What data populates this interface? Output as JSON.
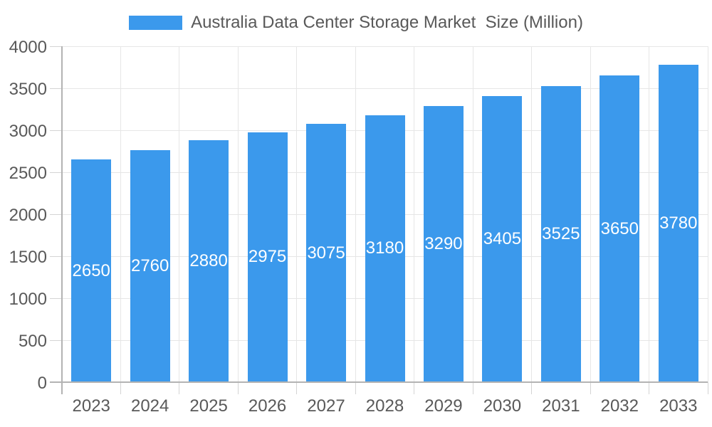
{
  "legend": {
    "label": "Australia Data Center Storage Market  Size (Million)"
  },
  "chart_data": {
    "type": "bar",
    "title": "Australia Data Center Storage Market  Size (Million)",
    "categories": [
      "2023",
      "2024",
      "2025",
      "2026",
      "2027",
      "2028",
      "2029",
      "2030",
      "2031",
      "2032",
      "2033"
    ],
    "values": [
      2650,
      2760,
      2880,
      2975,
      3075,
      3180,
      3290,
      3405,
      3525,
      3650,
      3780
    ],
    "series_name": "Australia Data Center Storage Market  Size (Million)",
    "xlabel": "",
    "ylabel": "",
    "ylim": [
      0,
      4000
    ],
    "yticks": [
      0,
      500,
      1000,
      1500,
      2000,
      2500,
      3000,
      3500,
      4000
    ],
    "grid": true,
    "legend_position": "top",
    "colors": {
      "bar": "#3B99EC",
      "bar_label": "#FFFFFF",
      "axis_text": "#595959",
      "grid_line": "#E6E6E6",
      "axis_line": "#B3B3B3",
      "tick_mark": "#D4D4D4"
    }
  }
}
